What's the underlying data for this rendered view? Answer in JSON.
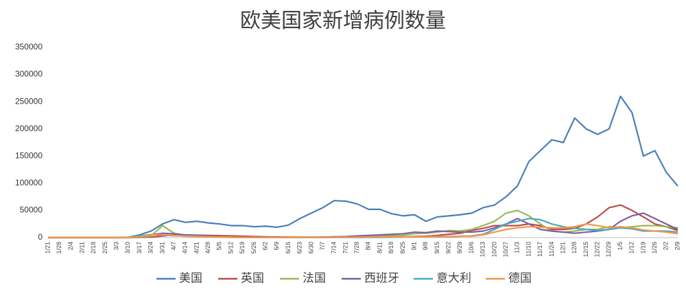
{
  "chart_data": {
    "type": "line",
    "title": "欧美国家新增病例数量",
    "categories": [
      "1/21",
      "1/28",
      "2/4",
      "2/11",
      "2/18",
      "2/25",
      "3/3",
      "3/10",
      "3/17",
      "3/24",
      "3/31",
      "4/7",
      "4/14",
      "4/21",
      "4/28",
      "5/5",
      "5/12",
      "5/19",
      "5/26",
      "6/2",
      "6/9",
      "6/16",
      "6/23",
      "6/30",
      "7/7",
      "7/14",
      "7/21",
      "7/28",
      "8/4",
      "8/11",
      "8/18",
      "8/25",
      "9/1",
      "9/8",
      "9/15",
      "9/22",
      "9/29",
      "10/6",
      "10/13",
      "10/20",
      "10/27",
      "11/3",
      "11/10",
      "11/17",
      "11/24",
      "12/1",
      "12/8",
      "12/15",
      "12/22",
      "12/29",
      "1/5",
      "1/12",
      "1/19",
      "1/26",
      "2/2",
      "2/9"
    ],
    "series": [
      {
        "name": "美国",
        "color": "#4a7ebb",
        "values": [
          0,
          0,
          0,
          0,
          0,
          0,
          0,
          500,
          5000,
          12000,
          25000,
          33000,
          28000,
          30000,
          27000,
          25000,
          22000,
          22000,
          20000,
          21000,
          19000,
          23000,
          35000,
          45000,
          55000,
          68000,
          67000,
          62000,
          52000,
          52000,
          44000,
          40000,
          42000,
          30000,
          38000,
          40000,
          42000,
          45000,
          55000,
          60000,
          75000,
          95000,
          140000,
          160000,
          180000,
          175000,
          220000,
          200000,
          190000,
          200000,
          260000,
          230000,
          150000,
          160000,
          120000,
          95000
        ]
      },
      {
        "name": "英国",
        "color": "#be4b48",
        "values": [
          0,
          0,
          0,
          0,
          0,
          0,
          0,
          0,
          300,
          1000,
          3000,
          5000,
          5000,
          4500,
          4000,
          3500,
          3000,
          2500,
          2000,
          1500,
          1200,
          1000,
          900,
          800,
          700,
          700,
          750,
          800,
          900,
          1000,
          1100,
          1200,
          2000,
          2500,
          4000,
          6000,
          8000,
          13000,
          17000,
          22000,
          22000,
          22000,
          25000,
          22000,
          15000,
          15000,
          17000,
          25000,
          38000,
          55000,
          60000,
          50000,
          38000,
          25000,
          20000,
          13000
        ]
      },
      {
        "name": "法国",
        "color": "#98b954",
        "values": [
          0,
          0,
          0,
          0,
          0,
          0,
          0,
          0,
          500,
          3000,
          22000,
          8000,
          4000,
          2500,
          1500,
          1000,
          800,
          500,
          300,
          500,
          500,
          600,
          800,
          700,
          600,
          800,
          1000,
          1000,
          2000,
          3000,
          3500,
          4000,
          7000,
          8000,
          10000,
          13000,
          12000,
          15000,
          22000,
          30000,
          45000,
          50000,
          40000,
          25000,
          12000,
          10000,
          12000,
          15000,
          15000,
          20000,
          18000,
          20000,
          22000,
          22000,
          20000,
          18000
        ]
      },
      {
        "name": "西班牙",
        "color": "#7d5fa0",
        "values": [
          0,
          0,
          0,
          0,
          0,
          0,
          0,
          0,
          1000,
          5000,
          8000,
          7000,
          5000,
          4000,
          2000,
          1000,
          500,
          500,
          400,
          300,
          300,
          400,
          600,
          500,
          1000,
          1500,
          2000,
          3000,
          4000,
          5000,
          6000,
          7000,
          10000,
          9000,
          12000,
          11000,
          10000,
          10000,
          12000,
          18000,
          25000,
          35000,
          25000,
          15000,
          12000,
          10000,
          8000,
          10000,
          12000,
          15000,
          30000,
          40000,
          45000,
          35000,
          25000,
          15000
        ]
      },
      {
        "name": "意大利",
        "color": "#46aac5",
        "values": [
          0,
          0,
          0,
          0,
          0,
          0,
          0,
          500,
          3000,
          5500,
          4500,
          3500,
          3000,
          2500,
          2000,
          1200,
          900,
          600,
          500,
          400,
          300,
          250,
          200,
          200,
          200,
          250,
          250,
          300,
          400,
          500,
          600,
          1000,
          1500,
          1500,
          1500,
          1700,
          2500,
          3000,
          6000,
          15000,
          25000,
          30000,
          35000,
          33000,
          25000,
          20000,
          17000,
          15000,
          13000,
          15000,
          18000,
          16000,
          12000,
          12000,
          12000,
          10000
        ]
      },
      {
        "name": "德国",
        "color": "#f79646",
        "values": [
          0,
          0,
          0,
          0,
          0,
          0,
          0,
          200,
          1500,
          5000,
          5500,
          4000,
          2500,
          1800,
          1200,
          800,
          600,
          500,
          400,
          400,
          300,
          400,
          500,
          500,
          500,
          600,
          800,
          1000,
          1200,
          1500,
          1500,
          1300,
          1200,
          1500,
          2000,
          2000,
          2500,
          2500,
          5000,
          10000,
          15000,
          18000,
          20000,
          19000,
          18000,
          18000,
          20000,
          25000,
          22000,
          18000,
          20000,
          18000,
          14000,
          12000,
          10000,
          7000
        ]
      }
    ],
    "ylim": [
      0,
      350000
    ],
    "yticks": [
      0,
      50000,
      100000,
      150000,
      200000,
      250000,
      300000,
      350000
    ],
    "grid": false,
    "legend": "bottom"
  }
}
